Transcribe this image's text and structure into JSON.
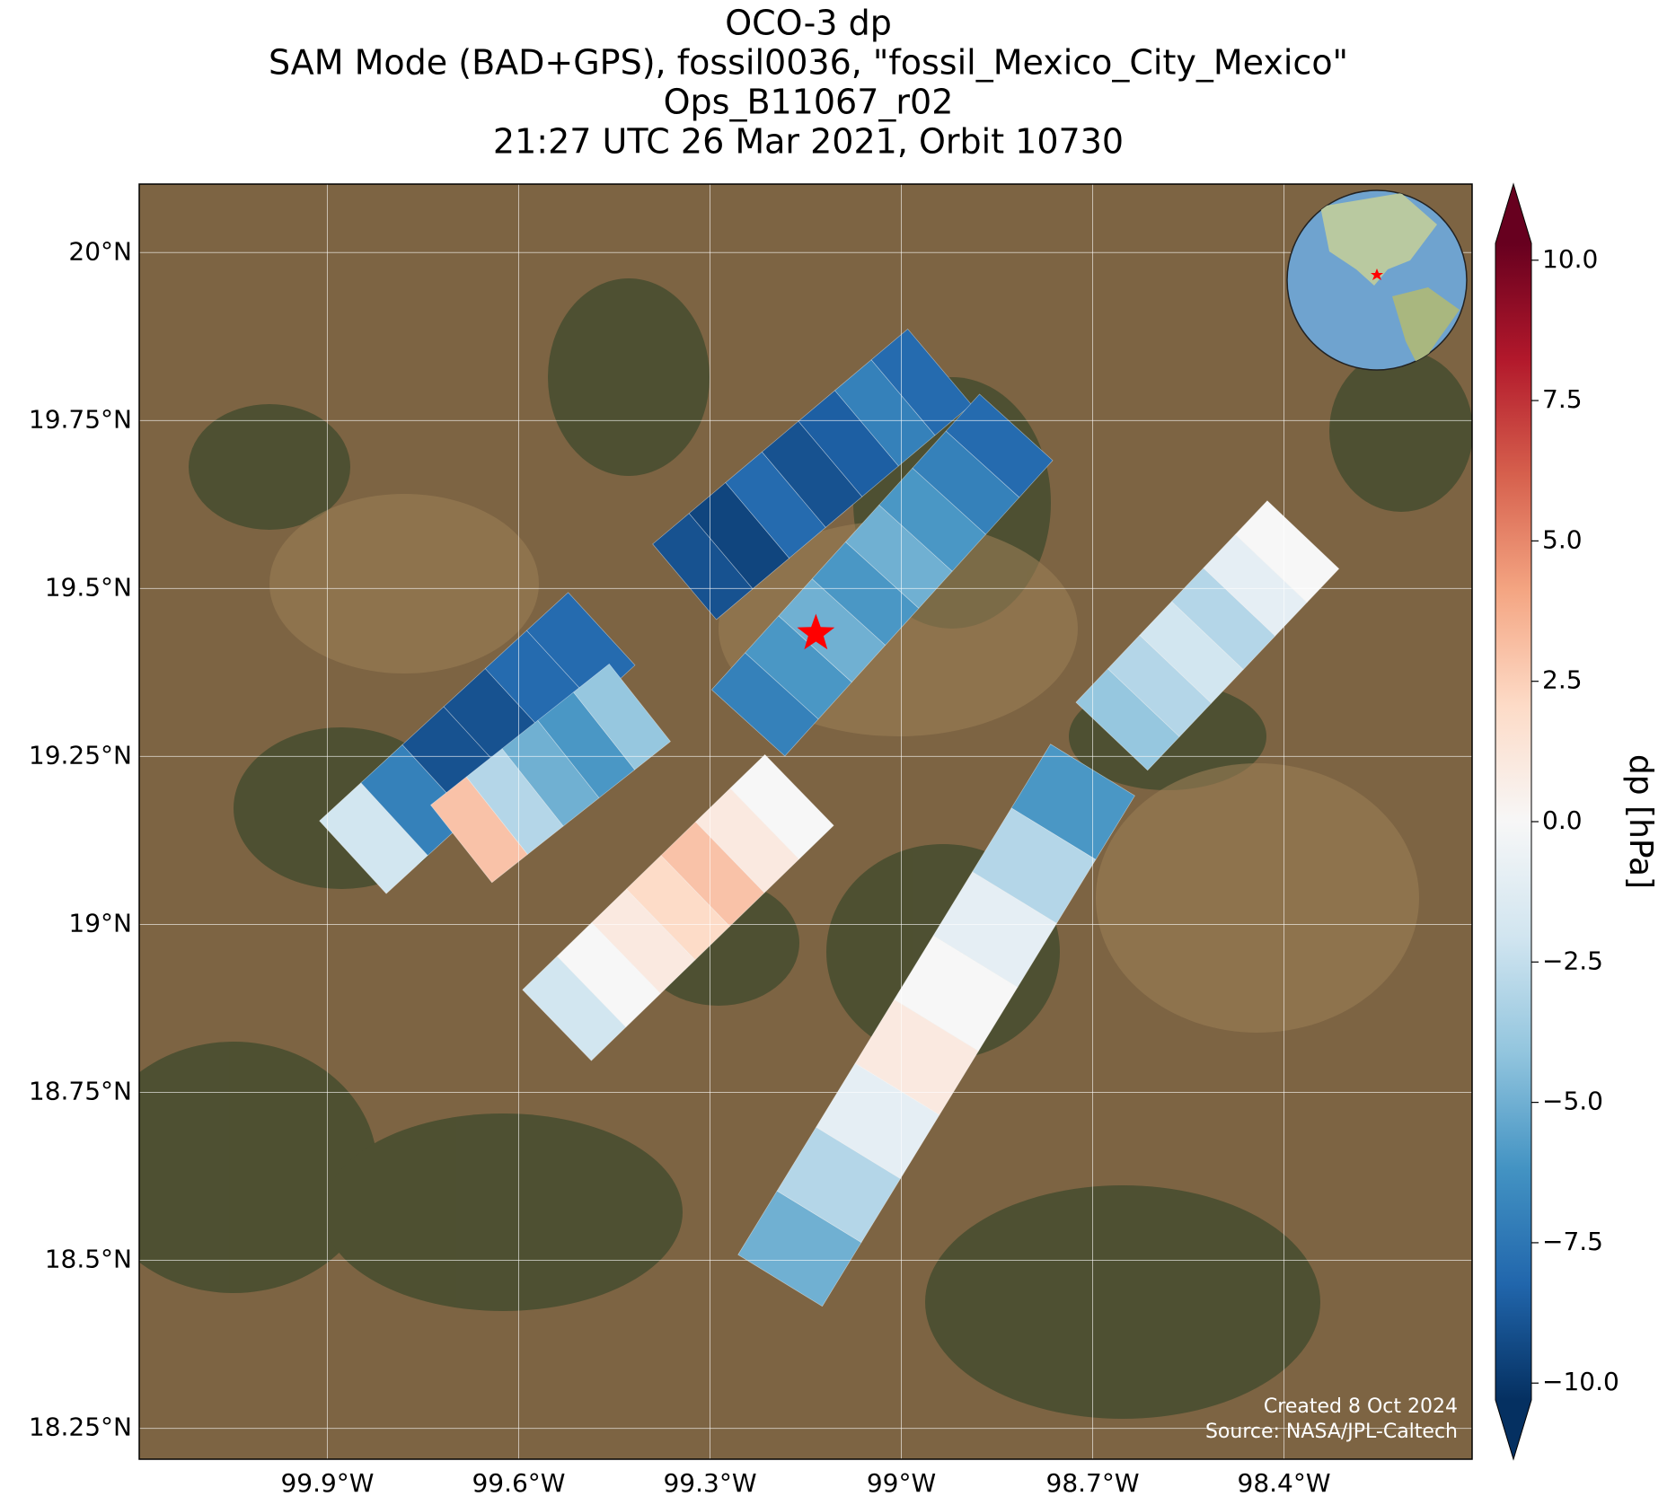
{
  "chart_data": {
    "type": "map",
    "title": [
      "OCO-3 dp",
      "SAM Mode (BAD+GPS), fossil0036, \"fossil_Mexico_City_Mexico\"",
      "Ops_B11067_r02",
      "21:27 UTC 26 Mar 2021, Orbit 10730"
    ],
    "xlim": [
      -100.195,
      -98.105
    ],
    "ylim": [
      18.204,
      20.102
    ],
    "xticks": [
      {
        "value": -99.9,
        "label": "99.9°W"
      },
      {
        "value": -99.6,
        "label": "99.6°W"
      },
      {
        "value": -99.3,
        "label": "99.3°W"
      },
      {
        "value": -99.0,
        "label": "99°W"
      },
      {
        "value": -98.7,
        "label": "98.7°W"
      },
      {
        "value": -98.4,
        "label": "98.4°W"
      }
    ],
    "yticks": [
      {
        "value": 20.0,
        "label": "20°N"
      },
      {
        "value": 19.75,
        "label": "19.75°N"
      },
      {
        "value": 19.5,
        "label": "19.5°N"
      },
      {
        "value": 19.25,
        "label": "19.25°N"
      },
      {
        "value": 19.0,
        "label": "19°N"
      },
      {
        "value": 18.75,
        "label": "18.75°N"
      },
      {
        "value": 18.5,
        "label": "18.5°N"
      },
      {
        "value": 18.25,
        "label": "18.25°N"
      }
    ],
    "grid": true,
    "colorbar": {
      "label": "dp [hPa]",
      "vlim": [
        -10.3,
        10.3
      ],
      "ticks": [
        {
          "value": 10.0,
          "label": "10.0"
        },
        {
          "value": 7.5,
          "label": "7.5"
        },
        {
          "value": 5.0,
          "label": "5.0"
        },
        {
          "value": 2.5,
          "label": "2.5"
        },
        {
          "value": 0.0,
          "label": "0.0"
        },
        {
          "value": -2.5,
          "label": "−2.5"
        },
        {
          "value": -5.0,
          "label": "−5.0"
        },
        {
          "value": -7.5,
          "label": "−7.5"
        },
        {
          "value": -10.0,
          "label": "−10.0"
        }
      ],
      "colormap": [
        "#053061",
        "#2166ac",
        "#4393c3",
        "#92c5de",
        "#d1e5f0",
        "#f7f7f7",
        "#fddbc7",
        "#f4a582",
        "#d6604d",
        "#b2182b",
        "#67001f"
      ]
    },
    "swaths": [
      {
        "start": [
          -99.34,
          19.51
        ],
        "end": [
          -98.94,
          19.83
        ],
        "values": [
          -9,
          -9.5,
          -8,
          -9,
          -8.5,
          -7,
          -8
        ]
      },
      {
        "start": [
          -99.24,
          19.3
        ],
        "end": [
          -98.82,
          19.74
        ],
        "values": [
          -7,
          -6,
          -5,
          -6,
          -5,
          -6,
          -7,
          -8
        ]
      },
      {
        "start": [
          -99.86,
          19.1
        ],
        "end": [
          -99.47,
          19.44
        ],
        "values": [
          -2,
          -7,
          -9,
          -9,
          -8,
          -8
        ]
      },
      {
        "start": [
          -99.69,
          19.12
        ],
        "end": [
          -99.41,
          19.33
        ],
        "values": [
          3,
          -3,
          -5,
          -6,
          -4
        ]
      },
      {
        "start": [
          -99.54,
          18.85
        ],
        "end": [
          -99.16,
          19.2
        ],
        "values": [
          -2,
          0,
          1,
          2,
          3,
          1,
          0
        ]
      },
      {
        "start": [
          -99.19,
          18.47
        ],
        "end": [
          -98.7,
          19.23
        ],
        "values": [
          -5,
          -3,
          -1,
          1,
          0,
          -1,
          -3,
          -6
        ]
      },
      {
        "start": [
          -98.67,
          19.28
        ],
        "end": [
          -98.37,
          19.58
        ],
        "values": [
          -4,
          -3,
          -2,
          -3,
          -1,
          0
        ]
      }
    ],
    "target": {
      "lon": -99.134,
      "lat": 19.433,
      "color": "#ff0000"
    },
    "footer": [
      "Created 8 Oct 2024",
      "Source: NASA/JPL-Caltech"
    ]
  }
}
